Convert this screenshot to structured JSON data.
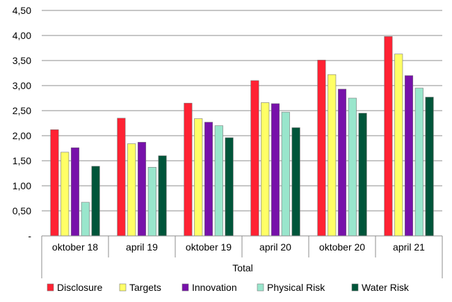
{
  "chart_data": {
    "type": "bar",
    "categories": [
      "oktober 18",
      "april 19",
      "oktober 19",
      "april 20",
      "oktober 20",
      "april 21"
    ],
    "group_label": "Total",
    "y_ticks": [
      "-",
      "0,50",
      "1,00",
      "1,50",
      "2,00",
      "2,50",
      "3,00",
      "3,50",
      "4,00",
      "4,50"
    ],
    "ylim": [
      0,
      4.5
    ],
    "grid": true,
    "legend_position": "bottom",
    "series": [
      {
        "name": "Disclosure",
        "color": "#ff2233",
        "values": [
          2.12,
          2.35,
          2.65,
          3.1,
          3.51,
          3.98
        ]
      },
      {
        "name": "Targets",
        "color": "#ffff66",
        "values": [
          1.67,
          1.84,
          2.34,
          2.66,
          3.22,
          3.63
        ]
      },
      {
        "name": "Innovation",
        "color": "#7711aa",
        "values": [
          1.76,
          1.87,
          2.27,
          2.64,
          2.93,
          3.2
        ]
      },
      {
        "name": "Physical Risk",
        "color": "#99e6cc",
        "values": [
          0.67,
          1.37,
          2.2,
          2.47,
          2.75,
          2.95
        ]
      },
      {
        "name": "Water Risk",
        "color": "#00553a",
        "values": [
          1.39,
          1.6,
          1.96,
          2.16,
          2.45,
          2.77
        ]
      }
    ]
  }
}
